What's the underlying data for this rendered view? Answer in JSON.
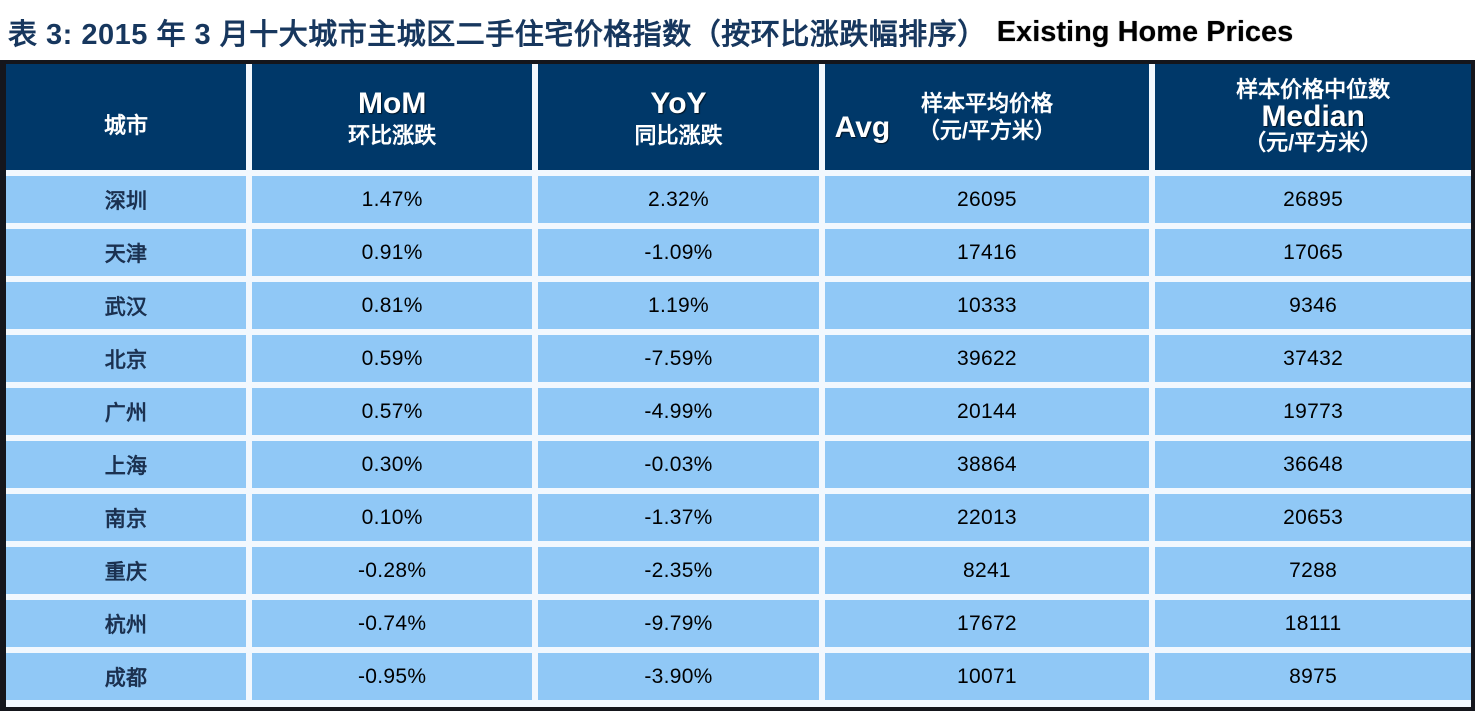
{
  "title": {
    "zh": "表 3: 2015 年 3 月十大城市主城区二手住宅价格指数（按环比涨跌幅排序）",
    "en": "Existing Home Prices"
  },
  "table": {
    "row_keys": [
      "city",
      "mom",
      "yoy",
      "avg",
      "median"
    ],
    "columns": [
      {
        "key": "city",
        "zh": "城市"
      },
      {
        "key": "mom",
        "en": "MoM",
        "zh": "环比涨跌"
      },
      {
        "key": "yoy",
        "en": "YoY",
        "zh": "同比涨跌"
      },
      {
        "key": "avg",
        "zh": "样本平均价格",
        "en": "Avg",
        "unit": "（元/平方米）"
      },
      {
        "key": "median",
        "zh": "样本价格中位数",
        "en": "Median",
        "unit": "（元/平方米）"
      }
    ],
    "rows": [
      {
        "city": "深圳",
        "mom": "1.47%",
        "yoy": "2.32%",
        "avg": "26095",
        "median": "26895"
      },
      {
        "city": "天津",
        "mom": "0.91%",
        "yoy": "-1.09%",
        "avg": "17416",
        "median": "17065"
      },
      {
        "city": "武汉",
        "mom": "0.81%",
        "yoy": "1.19%",
        "avg": "10333",
        "median": "9346"
      },
      {
        "city": "北京",
        "mom": "0.59%",
        "yoy": "-7.59%",
        "avg": "39622",
        "median": "37432"
      },
      {
        "city": "广州",
        "mom": "0.57%",
        "yoy": "-4.99%",
        "avg": "20144",
        "median": "19773"
      },
      {
        "city": "上海",
        "mom": "0.30%",
        "yoy": "-0.03%",
        "avg": "38864",
        "median": "36648"
      },
      {
        "city": "南京",
        "mom": "0.10%",
        "yoy": "-1.37%",
        "avg": "22013",
        "median": "20653"
      },
      {
        "city": "重庆",
        "mom": "-0.28%",
        "yoy": "-2.35%",
        "avg": "8241",
        "median": "7288"
      },
      {
        "city": "杭州",
        "mom": "-0.74%",
        "yoy": "-9.79%",
        "avg": "17672",
        "median": "18111"
      },
      {
        "city": "成都",
        "mom": "-0.95%",
        "yoy": "-3.90%",
        "avg": "10071",
        "median": "8975"
      }
    ]
  },
  "chart_data": {
    "type": "table",
    "title": "表 3: 2015 年 3 月十大城市主城区二手住宅价格指数（按环比涨跌幅排序） Existing Home Prices",
    "categories": [
      "深圳",
      "天津",
      "武汉",
      "北京",
      "广州",
      "上海",
      "南京",
      "重庆",
      "杭州",
      "成都"
    ],
    "series": [
      {
        "name": "MoM 环比涨跌 (%)",
        "values": [
          1.47,
          0.91,
          0.81,
          0.59,
          0.57,
          0.3,
          0.1,
          -0.28,
          -0.74,
          -0.95
        ]
      },
      {
        "name": "YoY 同比涨跌 (%)",
        "values": [
          2.32,
          -1.09,
          1.19,
          -7.59,
          -4.99,
          -0.03,
          -1.37,
          -2.35,
          -9.79,
          -3.9
        ]
      },
      {
        "name": "样本平均价格 Avg (元/平方米)",
        "values": [
          26095,
          17416,
          10333,
          39622,
          20144,
          38864,
          22013,
          8241,
          17672,
          10071
        ]
      },
      {
        "name": "样本价格中位数 Median (元/平方米)",
        "values": [
          26895,
          17065,
          9346,
          37432,
          19773,
          36648,
          20653,
          7288,
          18111,
          8975
        ]
      }
    ]
  },
  "colors": {
    "header_bg": "#003869",
    "cell_bg": "#90c8f6",
    "gutter": "#f2f8fe",
    "outer_border": "#15161c",
    "title_zh": "#17375E",
    "title_en": "#000000"
  }
}
